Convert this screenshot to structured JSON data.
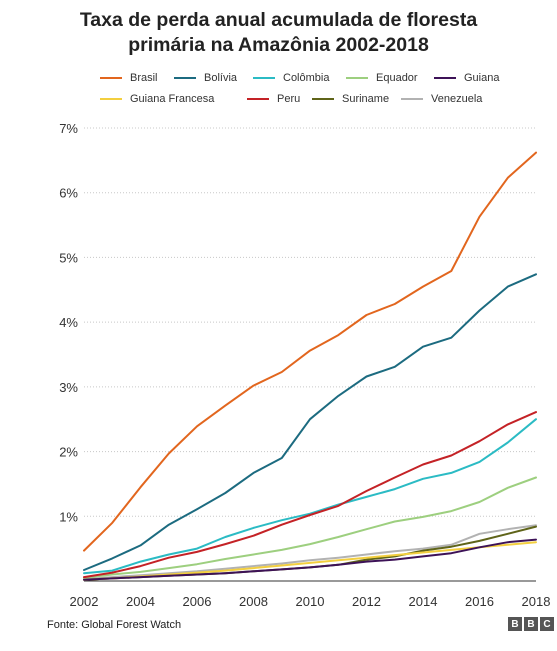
{
  "title_lines": [
    "Taxa de perda anual acumulada de floresta",
    "primária na Amazônia 2002-2018"
  ],
  "source": "Fonte: Global Forest Watch",
  "logo": [
    "B",
    "B",
    "C"
  ],
  "chart_data": {
    "type": "line",
    "title": "Taxa de perda anual acumulada de floresta primária na Amazônia 2002-2018",
    "xlabel": "",
    "ylabel": "",
    "x": [
      2002,
      2003,
      2004,
      2005,
      2006,
      2007,
      2008,
      2009,
      2010,
      2011,
      2012,
      2013,
      2014,
      2015,
      2016,
      2017,
      2018
    ],
    "xlim": [
      2002,
      2018
    ],
    "ylim": [
      0,
      7
    ],
    "x_ticks": [
      2002,
      2004,
      2006,
      2008,
      2010,
      2012,
      2014,
      2016,
      2018
    ],
    "y_ticks": [
      1,
      2,
      3,
      4,
      5,
      6,
      7
    ],
    "y_tick_labels": [
      "1%",
      "2%",
      "3%",
      "4%",
      "5%",
      "6%",
      "7%"
    ],
    "grid": "horizontal-dotted",
    "legend": "top",
    "series": [
      {
        "name": "Brasil",
        "color": "#e2661e",
        "values": [
          0.47,
          0.9,
          1.45,
          1.97,
          2.39,
          2.71,
          3.02,
          3.23,
          3.56,
          3.8,
          4.11,
          4.28,
          4.55,
          4.79,
          5.63,
          6.23,
          6.62
        ]
      },
      {
        "name": "Bolívia",
        "color": "#1c6b80",
        "values": [
          0.17,
          0.35,
          0.55,
          0.87,
          1.11,
          1.36,
          1.67,
          1.9,
          2.5,
          2.86,
          3.16,
          3.31,
          3.62,
          3.76,
          4.18,
          4.55,
          4.74
        ]
      },
      {
        "name": "Colômbia",
        "color": "#2bbbc4",
        "values": [
          0.12,
          0.16,
          0.3,
          0.41,
          0.5,
          0.68,
          0.82,
          0.94,
          1.04,
          1.18,
          1.3,
          1.42,
          1.58,
          1.67,
          1.84,
          2.14,
          2.5
        ]
      },
      {
        "name": "Equador",
        "color": "#9dcf7f",
        "values": [
          0.05,
          0.1,
          0.14,
          0.2,
          0.26,
          0.34,
          0.41,
          0.48,
          0.57,
          0.68,
          0.8,
          0.92,
          0.99,
          1.08,
          1.22,
          1.44,
          1.6
        ]
      },
      {
        "name": "Guiana",
        "color": "#3d1257",
        "values": [
          0.02,
          0.04,
          0.06,
          0.08,
          0.1,
          0.12,
          0.15,
          0.18,
          0.21,
          0.25,
          0.3,
          0.33,
          0.38,
          0.43,
          0.52,
          0.6,
          0.64
        ]
      },
      {
        "name": "Guiana Francesa",
        "color": "#f3cf3f",
        "values": [
          0.02,
          0.04,
          0.07,
          0.1,
          0.13,
          0.16,
          0.2,
          0.24,
          0.28,
          0.32,
          0.36,
          0.4,
          0.44,
          0.48,
          0.52,
          0.56,
          0.6
        ]
      },
      {
        "name": "Peru",
        "color": "#c42226",
        "values": [
          0.06,
          0.13,
          0.23,
          0.36,
          0.45,
          0.57,
          0.7,
          0.87,
          1.02,
          1.16,
          1.39,
          1.6,
          1.8,
          1.94,
          2.16,
          2.42,
          2.61
        ]
      },
      {
        "name": "Suriname",
        "color": "#5f6419",
        "values": [
          0.02,
          0.04,
          0.06,
          0.08,
          0.1,
          0.12,
          0.15,
          0.18,
          0.21,
          0.25,
          0.33,
          0.38,
          0.47,
          0.53,
          0.62,
          0.73,
          0.84
        ]
      },
      {
        "name": "Venezuela",
        "color": "#b2b2b2",
        "values": [
          0.03,
          0.06,
          0.09,
          0.12,
          0.15,
          0.19,
          0.23,
          0.27,
          0.32,
          0.36,
          0.41,
          0.46,
          0.5,
          0.56,
          0.73,
          0.8,
          0.86
        ]
      }
    ]
  }
}
